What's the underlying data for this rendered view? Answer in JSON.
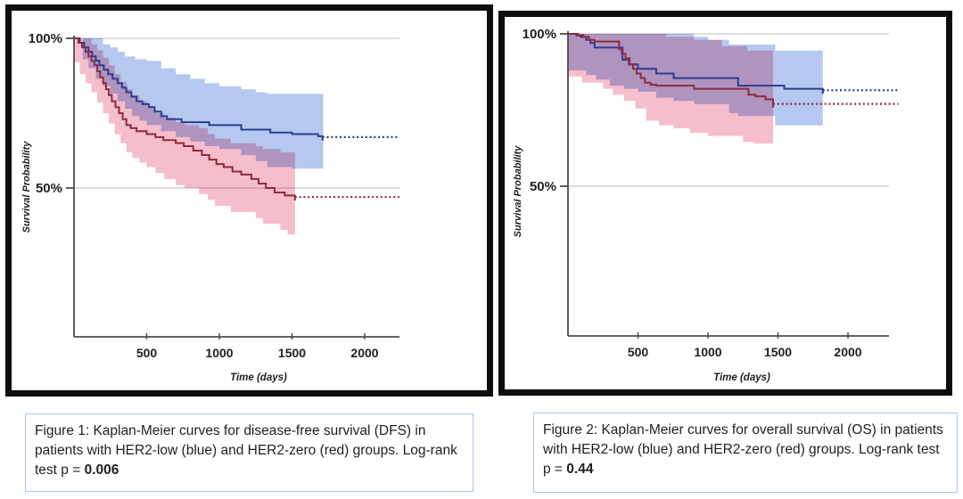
{
  "colors": {
    "her2_low_line": "#2e3c8e",
    "her2_low_band": "#b5c8f0",
    "her2_zero_line": "#8d2c3e",
    "her2_zero_band": "#f6bdcb",
    "gridline": "#c9c9c9",
    "axis": "#4c4c4c",
    "label_text": "#1f1f1f",
    "caption_border": "#a9c7e9",
    "panel_border": "#0d0d0d"
  },
  "captions": {
    "fig1": {
      "prefix": "Figure 1: Kaplan-Meier curves for disease-free survival (DFS) in patients with HER2-low (blue) and HER2-zero (red) groups. Log-rank test p = ",
      "p_value": "0.006"
    },
    "fig2": {
      "prefix": "Figure 2: Kaplan-Meier curves for overall survival (OS) in patients with HER2-low (blue) and HER2-zero (red) groups. Log-rank test p = ",
      "p_value": "0.44"
    }
  },
  "chart_data": [
    {
      "type": "line",
      "variant": "kaplan-meier-step",
      "endpoint": "disease-free survival (DFS)",
      "xlabel": "Time (days)",
      "ylabel": "Survival Probability",
      "x_ticks": [
        500,
        1000,
        1500,
        2000
      ],
      "xlim": [
        0,
        2240
      ],
      "ylim_pct": [
        0,
        100
      ],
      "y_ticks": [
        {
          "pct": 100,
          "label": "100%"
        },
        {
          "pct": 50,
          "label": "50%"
        }
      ],
      "grid": "horizontal gridlines at 100% and 50%",
      "legend_position": "none (groups identified in caption)",
      "series": [
        {
          "name": "HER2-low",
          "color_key": "her2_low",
          "steps_day_pct": [
            [
              0,
              100
            ],
            [
              40,
              98.5
            ],
            [
              70,
              97
            ],
            [
              100,
              95.5
            ],
            [
              125,
              94
            ],
            [
              150,
              92.5
            ],
            [
              175,
              91
            ],
            [
              205,
              89.5
            ],
            [
              235,
              88
            ],
            [
              265,
              86.5
            ],
            [
              300,
              85
            ],
            [
              330,
              83.5
            ],
            [
              360,
              82
            ],
            [
              395,
              80.5
            ],
            [
              430,
              79
            ],
            [
              470,
              78
            ],
            [
              515,
              77
            ],
            [
              555,
              75.5
            ],
            [
              600,
              74
            ],
            [
              640,
              73
            ],
            [
              740,
              72
            ],
            [
              930,
              71
            ],
            [
              1150,
              69.5
            ],
            [
              1350,
              68.5
            ],
            [
              1500,
              68
            ],
            [
              1680,
              67.3
            ],
            [
              1710,
              67
            ]
          ],
          "solid_end_day": 1710,
          "censored_extension": {
            "style": "dotted",
            "level_pct": 67,
            "to_day": 2240
          },
          "ci_band": {
            "end_day": 1715,
            "upper": [
              [
                0,
                100
              ],
              [
                150,
                100
              ],
              [
                200,
                98
              ],
              [
                250,
                97
              ],
              [
                300,
                95.5
              ],
              [
                350,
                94
              ],
              [
                420,
                93
              ],
              [
                500,
                92.5
              ],
              [
                600,
                90
              ],
              [
                700,
                88
              ],
              [
                800,
                86.5
              ],
              [
                900,
                85
              ],
              [
                1000,
                84
              ],
              [
                1150,
                83
              ],
              [
                1250,
                82
              ],
              [
                1330,
                81.5
              ],
              [
                1715,
                81
              ]
            ],
            "lower": [
              [
                0,
                100
              ],
              [
                60,
                93
              ],
              [
                100,
                90
              ],
              [
                150,
                86.5
              ],
              [
                200,
                84
              ],
              [
                250,
                81.5
              ],
              [
                300,
                79
              ],
              [
                350,
                76.5
              ],
              [
                400,
                74
              ],
              [
                450,
                72.5
              ],
              [
                500,
                71
              ],
              [
                600,
                69
              ],
              [
                700,
                67
              ],
              [
                800,
                65.5
              ],
              [
                900,
                64
              ],
              [
                1000,
                63
              ],
              [
                1150,
                61
              ],
              [
                1250,
                59
              ],
              [
                1330,
                57
              ],
              [
                1500,
                56.5
              ],
              [
                1715,
                56
              ]
            ]
          }
        },
        {
          "name": "HER2-zero",
          "color_key": "her2_zero",
          "steps_day_pct": [
            [
              0,
              100
            ],
            [
              30,
              98.5
            ],
            [
              55,
              97
            ],
            [
              80,
              95.5
            ],
            [
              100,
              94
            ],
            [
              120,
              92.5
            ],
            [
              140,
              91
            ],
            [
              160,
              89
            ],
            [
              180,
              87
            ],
            [
              200,
              85
            ],
            [
              220,
              83
            ],
            [
              240,
              81
            ],
            [
              260,
              79
            ],
            [
              285,
              77
            ],
            [
              310,
              75
            ],
            [
              335,
              73
            ],
            [
              360,
              71
            ],
            [
              390,
              70
            ],
            [
              430,
              69
            ],
            [
              500,
              68
            ],
            [
              560,
              67
            ],
            [
              615,
              66
            ],
            [
              700,
              65
            ],
            [
              755,
              64
            ],
            [
              820,
              62.5
            ],
            [
              880,
              61
            ],
            [
              930,
              59.5
            ],
            [
              980,
              58
            ],
            [
              1030,
              57
            ],
            [
              1090,
              55.5
            ],
            [
              1150,
              54.5
            ],
            [
              1220,
              53
            ],
            [
              1270,
              51.5
            ],
            [
              1320,
              50
            ],
            [
              1380,
              48.5
            ],
            [
              1450,
              47.5
            ],
            [
              1520,
              47
            ]
          ],
          "solid_end_day": 1520,
          "censored_extension": {
            "style": "dotted",
            "level_pct": 47,
            "to_day": 2240
          },
          "ci_band": {
            "end_day": 1520,
            "upper": [
              [
                0,
                100
              ],
              [
                80,
                100
              ],
              [
                120,
                98
              ],
              [
                160,
                96
              ],
              [
                200,
                93.5
              ],
              [
                240,
                91
              ],
              [
                280,
                88
              ],
              [
                320,
                85.5
              ],
              [
                360,
                83
              ],
              [
                400,
                81
              ],
              [
                450,
                79
              ],
              [
                500,
                77
              ],
              [
                560,
                75
              ],
              [
                620,
                73.5
              ],
              [
                700,
                72
              ],
              [
                760,
                71
              ],
              [
                860,
                70
              ],
              [
                920,
                68
              ],
              [
                970,
                66.5
              ],
              [
                1080,
                65
              ],
              [
                1250,
                64
              ],
              [
                1300,
                63
              ],
              [
                1420,
                62
              ],
              [
                1520,
                61
              ]
            ],
            "lower": [
              [
                0,
                92
              ],
              [
                40,
                88
              ],
              [
                80,
                85
              ],
              [
                120,
                82
              ],
              [
                160,
                78.5
              ],
              [
                200,
                75
              ],
              [
                240,
                71.5
              ],
              [
                280,
                68
              ],
              [
                320,
                65
              ],
              [
                360,
                62
              ],
              [
                400,
                60
              ],
              [
                450,
                58.5
              ],
              [
                500,
                57
              ],
              [
                560,
                55
              ],
              [
                620,
                53
              ],
              [
                700,
                51
              ],
              [
                760,
                50
              ],
              [
                860,
                48
              ],
              [
                920,
                46
              ],
              [
                970,
                44
              ],
              [
                1080,
                42
              ],
              [
                1250,
                40
              ],
              [
                1300,
                38
              ],
              [
                1420,
                36
              ],
              [
                1470,
                34.5
              ],
              [
                1520,
                34
              ]
            ]
          }
        }
      ]
    },
    {
      "type": "line",
      "variant": "kaplan-meier-step",
      "endpoint": "overall survival (OS)",
      "xlabel": "Time (days)",
      "ylabel": "Survival Probability",
      "x_ticks": [
        500,
        1000,
        1500,
        2000
      ],
      "xlim": [
        0,
        2290
      ],
      "ylim_pct": [
        0,
        100
      ],
      "y_ticks": [
        {
          "pct": 100,
          "label": "100%"
        },
        {
          "pct": 50,
          "label": "50%"
        }
      ],
      "grid": "horizontal gridlines at 100% and 50%",
      "legend_position": "none (groups identified in caption)",
      "series": [
        {
          "name": "HER2-low",
          "color_key": "her2_low",
          "steps_day_pct": [
            [
              0,
              100
            ],
            [
              60,
              99.5
            ],
            [
              90,
              99
            ],
            [
              130,
              98
            ],
            [
              160,
              97
            ],
            [
              190,
              95.5
            ],
            [
              390,
              91.5
            ],
            [
              435,
              90
            ],
            [
              500,
              88.5
            ],
            [
              630,
              87
            ],
            [
              755,
              85.5
            ],
            [
              1215,
              83
            ],
            [
              1545,
              82
            ],
            [
              1820,
              81.5
            ]
          ],
          "solid_end_day": 1820,
          "censored_extension": {
            "style": "dotted",
            "level_pct": 81.5,
            "to_day": 2360
          },
          "ci_band": {
            "end_day": 1820,
            "upper": [
              [
                0,
                100
              ],
              [
                850,
                100
              ],
              [
                900,
                99
              ],
              [
                1000,
                98
              ],
              [
                1150,
                96.5
              ],
              [
                1480,
                94.5
              ],
              [
                1820,
                94
              ]
            ],
            "lower": [
              [
                0,
                88
              ],
              [
                130,
                86.5
              ],
              [
                200,
                85
              ],
              [
                300,
                83
              ],
              [
                400,
                82
              ],
              [
                500,
                81
              ],
              [
                630,
                79
              ],
              [
                755,
                78
              ],
              [
                900,
                77
              ],
              [
                1150,
                74
              ],
              [
                1215,
                73
              ],
              [
                1480,
                70
              ],
              [
                1820,
                70
              ]
            ]
          }
        },
        {
          "name": "HER2-zero",
          "color_key": "her2_zero",
          "steps_day_pct": [
            [
              0,
              100
            ],
            [
              70,
              99.5
            ],
            [
              110,
              99
            ],
            [
              150,
              98
            ],
            [
              190,
              97.5
            ],
            [
              365,
              95
            ],
            [
              385,
              93.5
            ],
            [
              410,
              92
            ],
            [
              440,
              90
            ],
            [
              465,
              88.5
            ],
            [
              490,
              87
            ],
            [
              520,
              85.5
            ],
            [
              550,
              84
            ],
            [
              590,
              83.3
            ],
            [
              630,
              83
            ],
            [
              900,
              82
            ],
            [
              1290,
              80
            ],
            [
              1340,
              79.5
            ],
            [
              1410,
              78.5
            ],
            [
              1465,
              77
            ]
          ],
          "solid_end_day": 1465,
          "censored_extension": {
            "style": "dotted",
            "level_pct": 77,
            "to_day": 2360
          },
          "ci_band": {
            "end_day": 1465,
            "upper": [
              [
                0,
                100
              ],
              [
                600,
                100
              ],
              [
                700,
                99
              ],
              [
                900,
                98
              ],
              [
                1100,
                96
              ],
              [
                1280,
                94.5
              ],
              [
                1465,
                93
              ]
            ],
            "lower": [
              [
                0,
                86
              ],
              [
                100,
                84
              ],
              [
                250,
                82
              ],
              [
                320,
                80
              ],
              [
                400,
                78
              ],
              [
                480,
                75.5
              ],
              [
                560,
                71.5
              ],
              [
                650,
                70
              ],
              [
                755,
                69
              ],
              [
                870,
                67.5
              ],
              [
                1000,
                66.5
              ],
              [
                1250,
                64.5
              ],
              [
                1330,
                64
              ],
              [
                1465,
                63
              ]
            ]
          }
        }
      ]
    }
  ]
}
